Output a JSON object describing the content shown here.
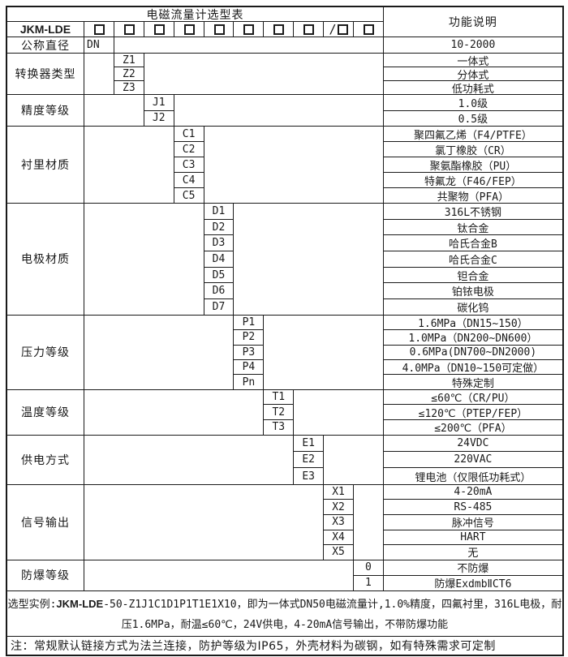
{
  "title": "电磁流量计选型表",
  "function_header": "功能说明",
  "model": "JKM-LDE",
  "box_prefixes": [
    "",
    "",
    "",
    "",
    "",
    "",
    "",
    "",
    "/",
    ""
  ],
  "sections": [
    {
      "label": "公称直径",
      "rows": [
        {
          "code": "DN",
          "value": "10-2000"
        }
      ]
    },
    {
      "label": "转换器类型",
      "rows": [
        {
          "code": "Z1",
          "value": "一体式"
        },
        {
          "code": "Z2",
          "value": "分体式"
        },
        {
          "code": "Z3",
          "value": "低功耗式"
        }
      ]
    },
    {
      "label": "精度等级",
      "rows": [
        {
          "code": "J1",
          "value": "1.0级"
        },
        {
          "code": "J2",
          "value": "0.5级"
        }
      ]
    },
    {
      "label": "衬里材质",
      "rows": [
        {
          "code": "C1",
          "value": "聚四氟乙烯（F4/PTFE）"
        },
        {
          "code": "C2",
          "value": "氯丁橡胶（CR）"
        },
        {
          "code": "C3",
          "value": "聚氨酯橡胶（PU）"
        },
        {
          "code": "C4",
          "value": "特氟龙（F46/FEP）"
        },
        {
          "code": "C5",
          "value": "共聚物（PFA）"
        }
      ]
    },
    {
      "label": "电极材质",
      "rows": [
        {
          "code": "D1",
          "value": "316L不锈钢"
        },
        {
          "code": "D2",
          "value": "钛合金"
        },
        {
          "code": "D3",
          "value": "哈氏合金B"
        },
        {
          "code": "D4",
          "value": "哈氏合金C"
        },
        {
          "code": "D5",
          "value": "钽合金"
        },
        {
          "code": "D6",
          "value": "铂铱电极"
        },
        {
          "code": "D7",
          "value": "碳化钨"
        }
      ]
    },
    {
      "label": "压力等级",
      "rows": [
        {
          "code": "P1",
          "value": "1.6MPa（DN15~150）"
        },
        {
          "code": "P2",
          "value": "1.0MPa（DN200~DN600）"
        },
        {
          "code": "P3",
          "value": "0.6MPa(DN700~DN2000)"
        },
        {
          "code": "P4",
          "value": "4.0MPa（DN10~150可定做）"
        },
        {
          "code": "Pn",
          "value": "特殊定制"
        }
      ]
    },
    {
      "label": "温度等级",
      "rows": [
        {
          "code": "T1",
          "value": "≤60℃（CR/PU）"
        },
        {
          "code": "T2",
          "value": "≤120℃（PTEP/FEP）"
        },
        {
          "code": "T3",
          "value": "≤200℃（PFA）"
        }
      ]
    },
    {
      "label": "供电方式",
      "rows": [
        {
          "code": "E1",
          "value": "24VDC"
        },
        {
          "code": "E2",
          "value": "220VAC"
        },
        {
          "code": "E3",
          "value": "锂电池（仅限低功耗式）"
        }
      ]
    },
    {
      "label": "信号输出",
      "rows": [
        {
          "code": "X1",
          "value": "4-20mA"
        },
        {
          "code": "X2",
          "value": "RS-485"
        },
        {
          "code": "X3",
          "value": "脉冲信号"
        },
        {
          "code": "X4",
          "value": "HART"
        },
        {
          "code": "X5",
          "value": "无"
        }
      ]
    },
    {
      "label": "防爆等级",
      "rows": [
        {
          "code": "0",
          "value": "不防爆"
        },
        {
          "code": "1",
          "value": "防爆ExdmbⅡCT6"
        }
      ]
    }
  ],
  "example": {
    "prefix": "选型实例:",
    "model": "JKM-LDE",
    "rest": "-50-Z1J1C1D1P1T1E1X10，即为一体式DN50电磁流量计,1.0%精度，四氟衬里，316L电极，耐压1.6MPa，耐温≤60℃，24V供电，4-20mA信号输出，不带防爆功能"
  },
  "note": "注：常规默认链接方式为法兰连接，防护等级为IP65，外壳材料为碳钢，如有特殊需求可定制",
  "colors": {
    "border": "#1a1a1a",
    "text": "#1a1a1a",
    "background": "#ffffff"
  }
}
